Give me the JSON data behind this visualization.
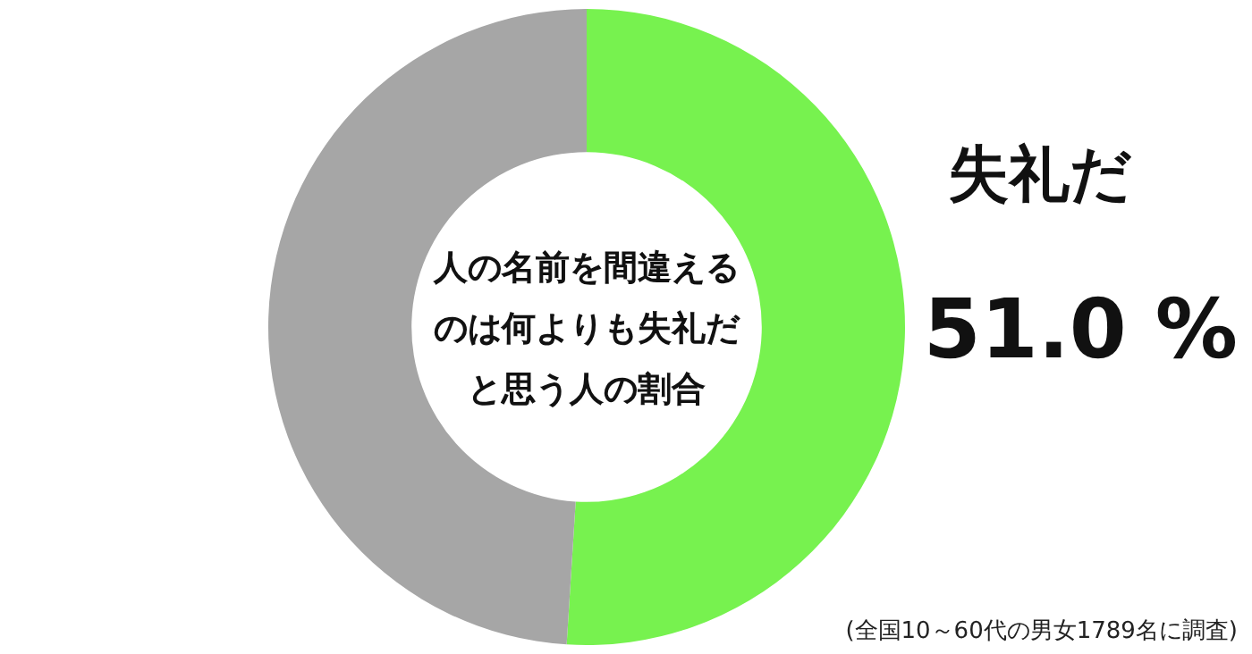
{
  "chart_data": {
    "type": "donut",
    "title": "人の名前を間違えるのは何よりも失礼だと思う人の割合",
    "categories": [
      "失礼だ",
      null
    ],
    "values": [
      51.0,
      49.0
    ],
    "colors": [
      "#77f24f",
      "#a6a6a6"
    ],
    "value_labels": [
      "51.0 %",
      null
    ],
    "legend": false,
    "annotations": [
      "(全国10～60代の男女1789名に調査)"
    ]
  }
}
